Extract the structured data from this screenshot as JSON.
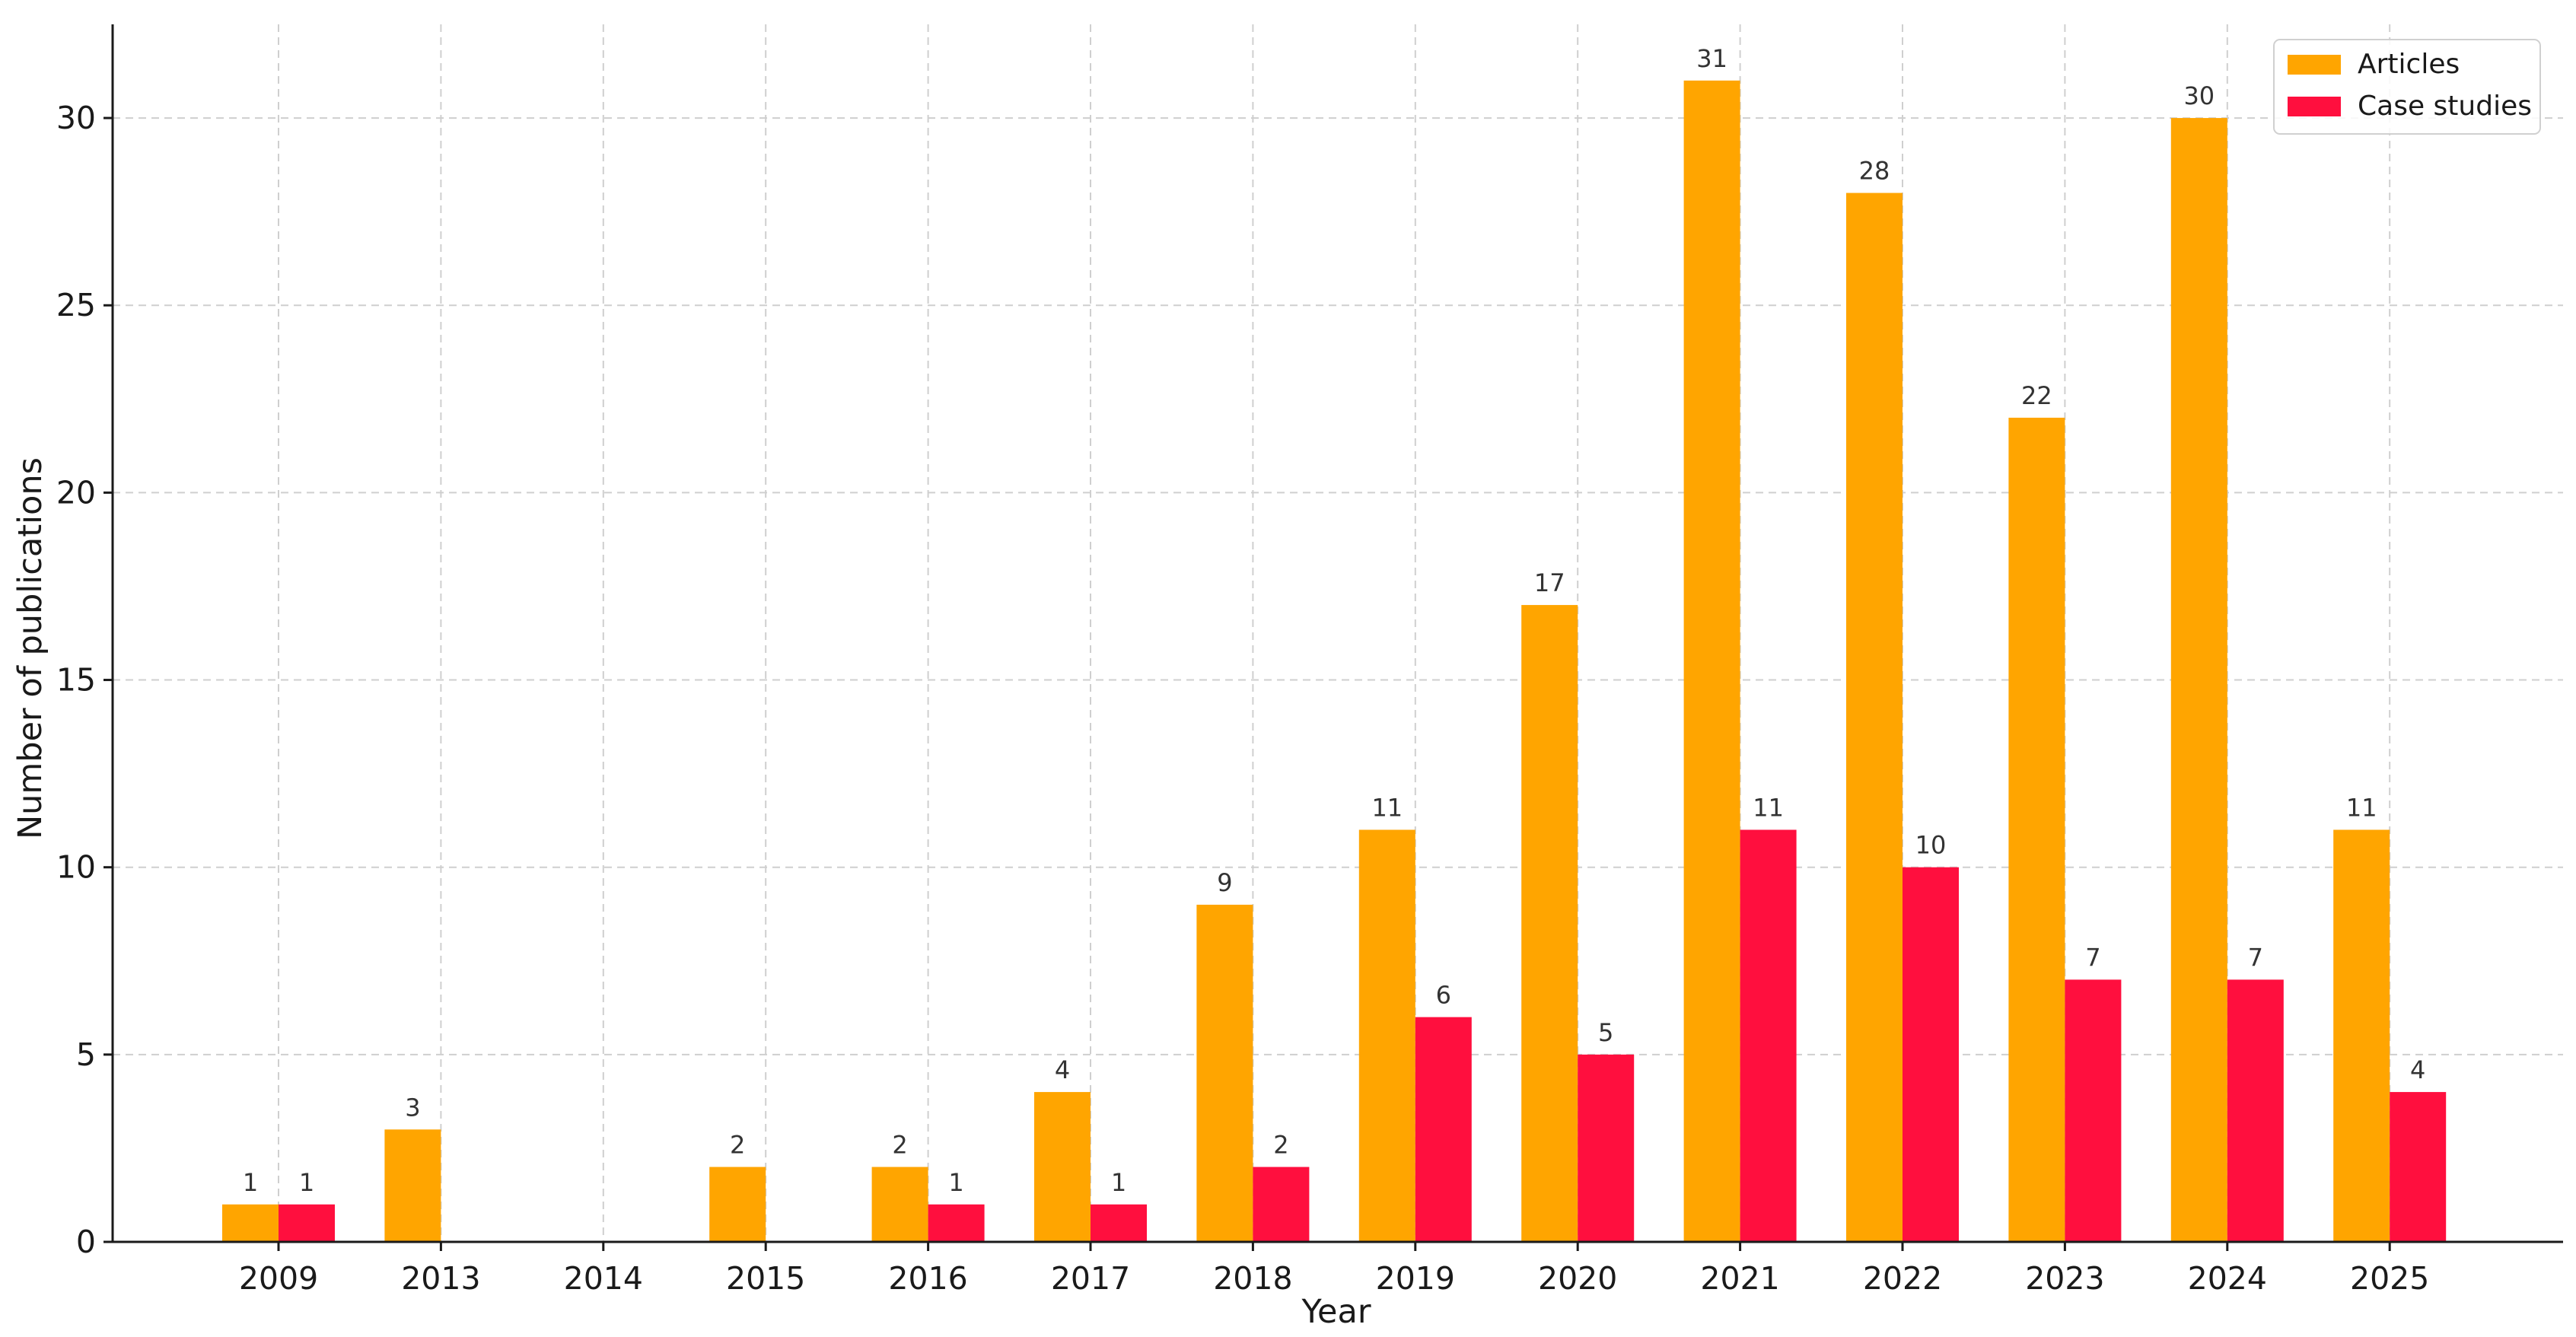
{
  "chart_data": {
    "type": "bar",
    "title": "",
    "xlabel": "Year",
    "ylabel": "Number of publications",
    "categories": [
      "2009",
      "2013",
      "2014",
      "2015",
      "2016",
      "2017",
      "2018",
      "2019",
      "2020",
      "2021",
      "2022",
      "2023",
      "2024",
      "2025"
    ],
    "series": [
      {
        "name": "Articles",
        "color": "#FFA500",
        "values": [
          1,
          3,
          0,
          2,
          2,
          4,
          9,
          11,
          17,
          31,
          28,
          22,
          30,
          11
        ],
        "labels": [
          "1",
          "3",
          "",
          "2",
          "2",
          "4",
          "9",
          "11",
          "17",
          "31",
          "28",
          "22",
          "30",
          "11"
        ]
      },
      {
        "name": "Case studies",
        "color": "#FF0F3E",
        "values": [
          1,
          0,
          0,
          0,
          1,
          1,
          2,
          6,
          5,
          11,
          10,
          7,
          7,
          4
        ],
        "labels": [
          "1",
          "",
          "",
          "",
          "1",
          "1",
          "2",
          "6",
          "5",
          "11",
          "10",
          "7",
          "7",
          "4"
        ]
      }
    ],
    "ylim": [
      0,
      32.5
    ],
    "yticks": [
      0,
      5,
      10,
      15,
      20,
      25,
      30
    ],
    "grid": true,
    "legend": "top-right"
  }
}
